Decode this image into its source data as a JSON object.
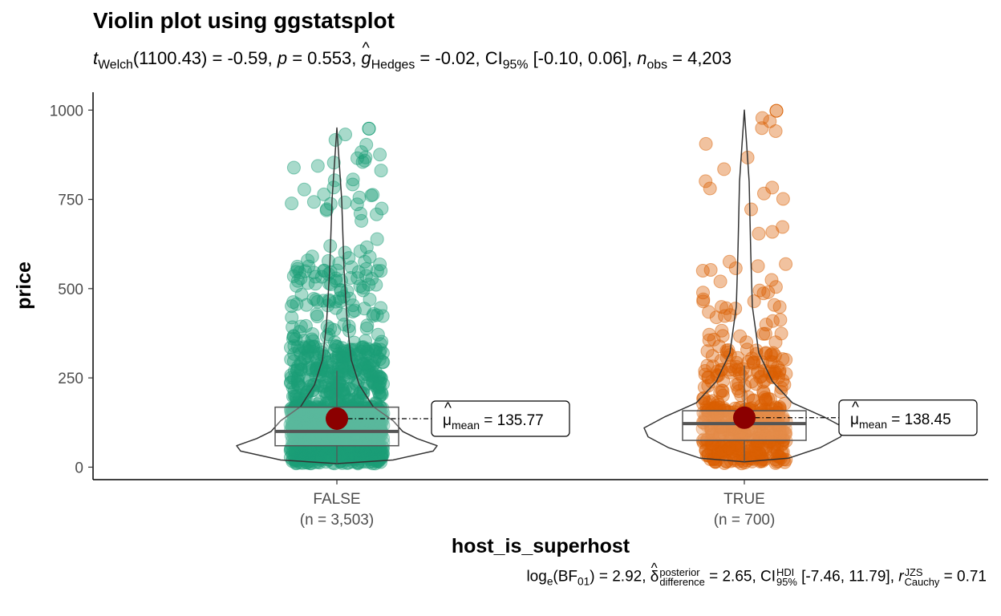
{
  "chart_data": {
    "type": "violin",
    "title": "Violin plot using ggstatsplot",
    "subtitle": {
      "t_symbol": "t",
      "t_sub": "Welch",
      "t_value": "(1100.43) = -0.59,",
      "p_symbol": "p",
      "p_value": "= 0.553,",
      "g_symbol": "g",
      "g_sub": "Hedges",
      "g_value": "= -0.02, CI",
      "ci_sub": "95%",
      "ci_value": "[-0.10, 0.06],",
      "n_symbol": "n",
      "n_sub": "obs",
      "n_value": "= 4,203"
    },
    "caption": {
      "bf_prefix": "log",
      "bf_e": "e",
      "bf_mid": "(BF",
      "bf_sub": "01",
      "bf_value": ") = 2.92,",
      "delta_symbol": "δ",
      "delta_sup": "posterior",
      "delta_sub": "difference",
      "delta_value": "= 2.65, CI",
      "ci_sup": "HDI",
      "ci_sub": "95%",
      "ci_value": "[-7.46, 11.79],",
      "r_symbol": "r",
      "r_sup": "JZS",
      "r_sub": "Cauchy",
      "r_value": "= 0.71"
    },
    "xlabel": "host_is_superhost",
    "ylabel": "price",
    "ylim": [
      -35,
      1050
    ],
    "yticks": [
      "0",
      "250",
      "500",
      "750",
      "1000"
    ],
    "ytick_values": [
      0,
      250,
      500,
      750,
      1000
    ],
    "grid": false,
    "groups": [
      {
        "category": "FALSE",
        "n_label": "(n = 3,503)",
        "color": "#1b9e77",
        "box": {
          "q1": 60,
          "median": 100,
          "q3": 168,
          "whisker_low": 10,
          "whisker_high": 270
        },
        "max": 950,
        "mean": 135.77,
        "mean_label_symbol": "μ",
        "mean_label_sub": "mean",
        "mean_label_value": "= 135.77"
      },
      {
        "category": "TRUE",
        "n_label": "(n = 700)",
        "color": "#d95f02",
        "box": {
          "q1": 75,
          "median": 122,
          "q3": 158,
          "whisker_low": 15,
          "whisker_high": 285
        },
        "max": 1000,
        "mean": 138.45,
        "mean_label_symbol": "μ",
        "mean_label_sub": "mean",
        "mean_label_value": "= 138.45"
      }
    ],
    "mean_color": "#8b0000"
  }
}
